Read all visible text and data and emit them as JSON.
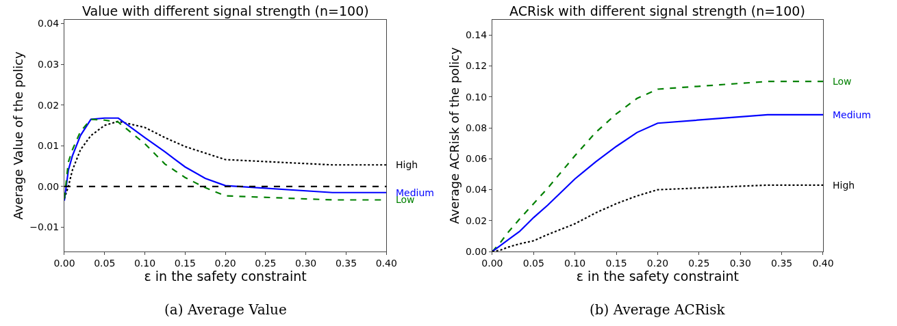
{
  "chart_data": [
    {
      "type": "line",
      "title": "Value with different signal strength (n=100)",
      "xlabel": "ε in the safety constraint",
      "ylabel": "Average Value of the policy",
      "x": [
        0,
        0.005,
        0.01,
        0.02,
        0.033,
        0.05,
        0.067,
        0.1,
        0.125,
        0.15,
        0.175,
        0.2,
        0.333,
        0.4
      ],
      "series": [
        {
          "name": "High",
          "color": "#000000",
          "line_style": "dotted",
          "values": [
            -0.003,
            0.0,
            0.004,
            0.009,
            0.0125,
            0.015,
            0.016,
            0.0145,
            0.012,
            0.0098,
            0.0082,
            0.0066,
            0.0053,
            0.0053
          ]
        },
        {
          "name": "Medium",
          "color": "#0000ff",
          "line_style": "solid",
          "values": [
            -0.0035,
            0.004,
            0.0075,
            0.0125,
            0.0165,
            0.0168,
            0.0168,
            0.012,
            0.0085,
            0.0048,
            0.002,
            0.0002,
            -0.0015,
            -0.0015
          ]
        },
        {
          "name": "Low",
          "color": "#008000",
          "line_style": "dashed",
          "values": [
            -0.003,
            0.006,
            0.009,
            0.0135,
            0.0165,
            0.0163,
            0.0158,
            0.0105,
            0.0055,
            0.0022,
            -0.0003,
            -0.0023,
            -0.0033,
            -0.0033
          ]
        }
      ],
      "ref_lines": [
        {
          "axis": "y",
          "value": 0,
          "color": "#000000",
          "line_style": "dashed"
        }
      ],
      "xlim": [
        0,
        0.4
      ],
      "xticks": [
        {
          "value": 0,
          "label": "0.00"
        },
        {
          "value": 0.05,
          "label": "0.05"
        },
        {
          "value": 0.1,
          "label": "0.10"
        },
        {
          "value": 0.15,
          "label": "0.15"
        },
        {
          "value": 0.2,
          "label": "0.20"
        },
        {
          "value": 0.25,
          "label": "0.25"
        },
        {
          "value": 0.3,
          "label": "0.30"
        },
        {
          "value": 0.35,
          "label": "0.35"
        },
        {
          "value": 0.4,
          "label": "0.40"
        }
      ],
      "ylim": [
        -0.016,
        0.041
      ],
      "yticks": [
        {
          "value": -0.01,
          "label": "−0.01"
        },
        {
          "value": 0,
          "label": "0.00"
        },
        {
          "value": 0.01,
          "label": "0.01"
        },
        {
          "value": 0.02,
          "label": "0.02"
        },
        {
          "value": 0.03,
          "label": "0.03"
        },
        {
          "value": 0.04,
          "label": "0.04"
        }
      ],
      "legend": false,
      "annotations": [
        "(a) Average Value"
      ]
    },
    {
      "type": "line",
      "title": "ACRisk with different signal strength (n=100)",
      "xlabel": "ε in the safety constraint",
      "ylabel": "Average ACRisk of the policy",
      "x": [
        0,
        0.005,
        0.01,
        0.02,
        0.033,
        0.05,
        0.067,
        0.1,
        0.125,
        0.15,
        0.175,
        0.2,
        0.333,
        0.4
      ],
      "series": [
        {
          "name": "Low",
          "color": "#008000",
          "line_style": "dashed",
          "values": [
            0,
            0.003,
            0.006,
            0.013,
            0.021,
            0.031,
            0.041,
            0.062,
            0.077,
            0.089,
            0.099,
            0.105,
            0.11,
            0.11
          ]
        },
        {
          "name": "Medium",
          "color": "#0000ff",
          "line_style": "solid",
          "values": [
            0,
            0.002,
            0.004,
            0.008,
            0.013,
            0.022,
            0.03,
            0.047,
            0.058,
            0.068,
            0.077,
            0.083,
            0.0885,
            0.0885
          ]
        },
        {
          "name": "High",
          "color": "#000000",
          "line_style": "dotted",
          "values": [
            0,
            0.0005,
            0.001,
            0.003,
            0.005,
            0.007,
            0.011,
            0.018,
            0.025,
            0.031,
            0.036,
            0.04,
            0.043,
            0.043
          ]
        }
      ],
      "xlim": [
        0,
        0.4
      ],
      "xticks": [
        {
          "value": 0,
          "label": "0.00"
        },
        {
          "value": 0.05,
          "label": "0.05"
        },
        {
          "value": 0.1,
          "label": "0.10"
        },
        {
          "value": 0.15,
          "label": "0.15"
        },
        {
          "value": 0.2,
          "label": "0.20"
        },
        {
          "value": 0.25,
          "label": "0.25"
        },
        {
          "value": 0.3,
          "label": "0.30"
        },
        {
          "value": 0.35,
          "label": "0.35"
        },
        {
          "value": 0.4,
          "label": "0.40"
        }
      ],
      "ylim": [
        0,
        0.15
      ],
      "yticks": [
        {
          "value": 0,
          "label": "0.00"
        },
        {
          "value": 0.02,
          "label": "0.02"
        },
        {
          "value": 0.04,
          "label": "0.04"
        },
        {
          "value": 0.06,
          "label": "0.06"
        },
        {
          "value": 0.08,
          "label": "0.08"
        },
        {
          "value": 0.1,
          "label": "0.10"
        },
        {
          "value": 0.12,
          "label": "0.12"
        },
        {
          "value": 0.14,
          "label": "0.14"
        }
      ],
      "legend": false,
      "annotations": [
        "(b) Average ACRisk"
      ]
    }
  ]
}
